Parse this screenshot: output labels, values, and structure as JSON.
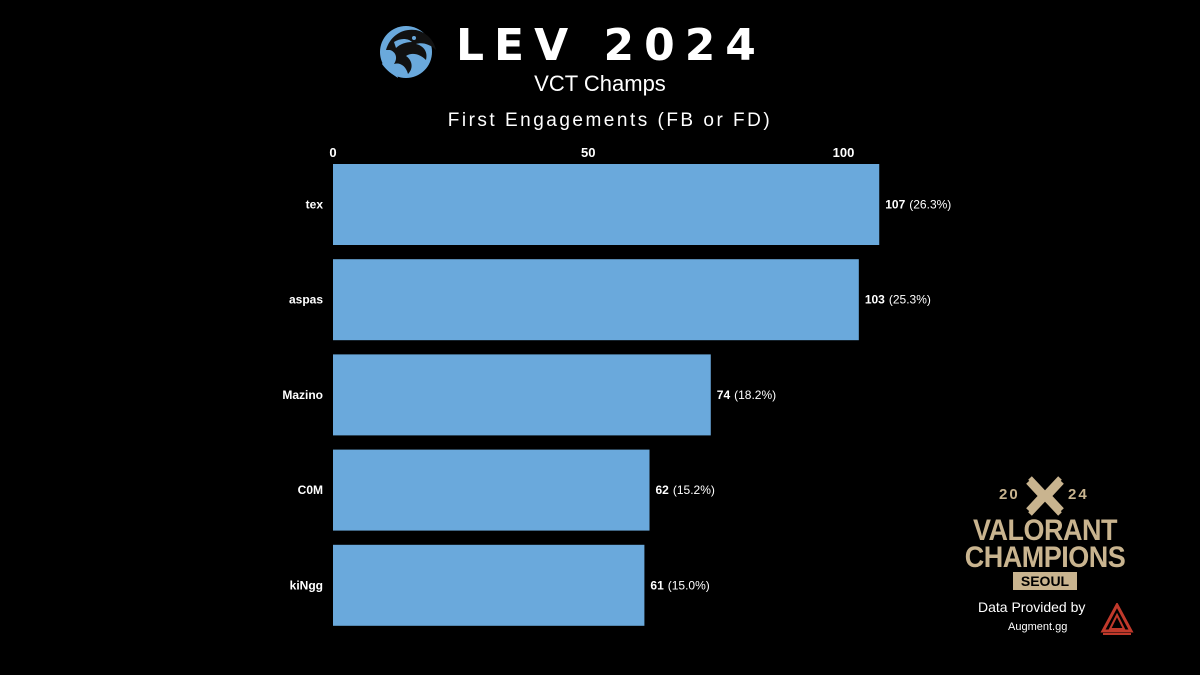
{
  "header": {
    "title": "LEV 2024",
    "subtitle": "VCT Champs",
    "chart_title": "First Engagements (FB or FD)"
  },
  "chart_data": {
    "type": "bar",
    "orientation": "horizontal",
    "title": "First Engagements (FB or FD)",
    "categories": [
      "tex",
      "aspas",
      "Mazino",
      "C0M",
      "kiNgg"
    ],
    "values": [
      107,
      103,
      74,
      62,
      61
    ],
    "value_labels": [
      "107",
      "103",
      "74",
      "62",
      "61"
    ],
    "percent_labels": [
      "(26.3%)",
      "(25.3%)",
      "(18.2%)",
      "(15.2%)",
      "(15.0%)"
    ],
    "x_ticks": [
      0,
      50,
      100
    ],
    "x_tick_labels": [
      "0",
      "50",
      "100"
    ],
    "xlim": [
      0,
      110
    ],
    "axis_position": "top",
    "grid": false,
    "bar_color": "#6aa9dc"
  },
  "event": {
    "year_left": "20",
    "year_right": "24",
    "name_line1": "VALORANT",
    "name_line2": "CHAMPIONS",
    "city": "SEOUL",
    "color": "#c9b48f"
  },
  "credit": {
    "text": "Data Provided by",
    "site": "Augment.gg",
    "brand_color": "#c0392b"
  },
  "icons": {
    "team_logo": "leviatan-dragon-logo",
    "event_logo": "valorant-champions-logo",
    "credit_logo": "augment-logo"
  },
  "colors": {
    "background": "#000000",
    "text": "#ffffff",
    "team_blue": "#6aa9dc"
  }
}
